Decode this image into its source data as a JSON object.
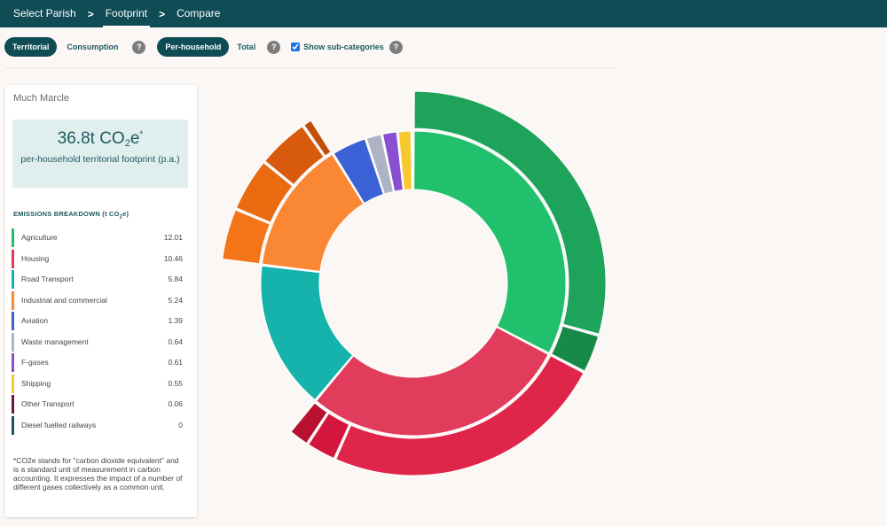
{
  "nav": {
    "items": [
      "Select Parish",
      "Footprint",
      "Compare"
    ],
    "separator": ">"
  },
  "toolbar": {
    "territorial": "Territorial",
    "consumption": "Consumption",
    "per_household": "Per-household",
    "total": "Total",
    "show_subcategories": "Show sub-categories",
    "help": "?"
  },
  "panel": {
    "parish": "Much Marcle",
    "footprint_value": "36.8t CO",
    "footprint_sub": "2",
    "footprint_e": "e",
    "footprint_sup": "*",
    "footprint_label": "per-household territorial footprint (p.a.)",
    "breakdown_title": "EMISSIONS BREAKDOWN (t CO",
    "breakdown_sub": "2",
    "breakdown_end": "e)",
    "footnote": "*CO2e stands for \"carbon dioxide equivalent\" and is a standard unit of measurement in carbon accounting. It expresses the impact of a number of different gases collectively as a common unit."
  },
  "chart_data": {
    "type": "sunburst",
    "unit": "t CO2e",
    "categories": [
      {
        "name": "Agriculture",
        "value": 12.01,
        "color": "#21c06c",
        "sub": [
          10.8,
          1.21
        ],
        "sub_colors": [
          "#1ea35a",
          "#178a48"
        ]
      },
      {
        "name": "Housing",
        "value": 10.46,
        "color": "#e23c5c",
        "sub": [
          8.85,
          0.95,
          0.66
        ],
        "sub_colors": [
          "#e0254a",
          "#d4163f",
          "#b8102f"
        ]
      },
      {
        "name": "Road Transport",
        "value": 5.84,
        "color": "#16b3ad",
        "sub": [],
        "sub_colors": []
      },
      {
        "name": "Industrial and commercial",
        "value": 5.24,
        "color": "#fa8733",
        "sub": [
          1.62,
          1.68,
          1.62,
          0.32
        ],
        "sub_colors": [
          "#f47418",
          "#ea6a10",
          "#d85a0c",
          "#c04e08"
        ]
      },
      {
        "name": "Aviation",
        "value": 1.39,
        "color": "#3a62d6",
        "sub": [],
        "sub_colors": []
      },
      {
        "name": "Waste management",
        "value": 0.64,
        "color": "#aeb4c6",
        "sub": [],
        "sub_colors": []
      },
      {
        "name": "F-gases",
        "value": 0.61,
        "color": "#8a4fd1",
        "sub": [],
        "sub_colors": []
      },
      {
        "name": "Shipping",
        "value": 0.55,
        "color": "#f8c92e",
        "sub": [],
        "sub_colors": []
      },
      {
        "name": "Other Transport",
        "value": 0.06,
        "color": "#6b1a3e",
        "sub": [],
        "sub_colors": []
      },
      {
        "name": "Diesel fuelled railways",
        "value": 0,
        "color": "#1b5560",
        "sub": [],
        "sub_colors": []
      }
    ]
  }
}
